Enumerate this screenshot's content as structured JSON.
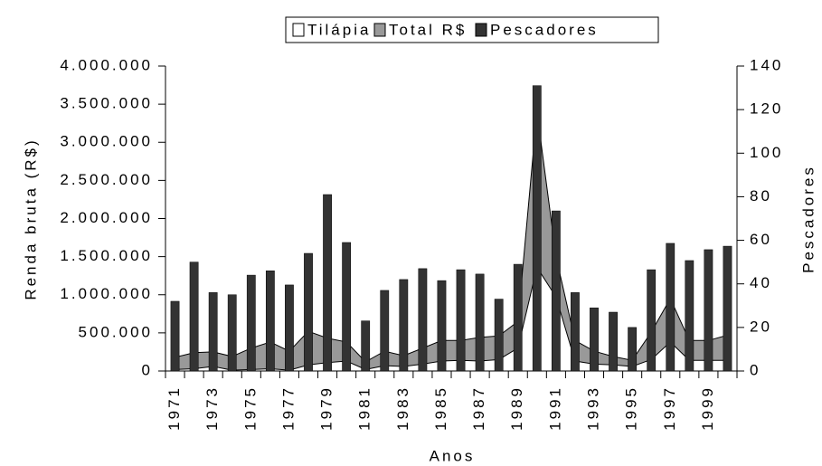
{
  "chart_data": {
    "type": "combo",
    "x_label": "Anos",
    "y_label": "Renda bruta (R$)",
    "y2_label": "Pescadores",
    "categories": [
      "1971",
      null,
      "1973",
      null,
      "1975",
      null,
      "1977",
      null,
      "1979",
      null,
      "1981",
      null,
      "1983",
      null,
      "1985",
      null,
      "1987",
      null,
      "1989",
      null,
      "1991",
      null,
      "1993",
      null,
      "1995",
      null,
      "1997",
      null,
      "1999",
      null
    ],
    "series": [
      {
        "name": "Tilápia",
        "type": "area",
        "color": "#ffffff",
        "axis": "y",
        "values": [
          20000,
          30000,
          60000,
          10000,
          20000,
          30000,
          10000,
          80000,
          110000,
          130000,
          20000,
          70000,
          60000,
          90000,
          130000,
          140000,
          130000,
          150000,
          300000,
          1360000,
          970000,
          130000,
          90000,
          80000,
          60000,
          150000,
          380000,
          140000,
          140000,
          140000
        ]
      },
      {
        "name": "Total R$",
        "type": "area",
        "color": "#999999",
        "axis": "y",
        "values": [
          180000,
          240000,
          250000,
          190000,
          300000,
          380000,
          260000,
          520000,
          430000,
          380000,
          120000,
          260000,
          200000,
          300000,
          400000,
          400000,
          440000,
          460000,
          650000,
          3400000,
          1500000,
          400000,
          260000,
          190000,
          140000,
          510000,
          950000,
          400000,
          400000,
          470000
        ]
      },
      {
        "name": "Pescadores",
        "type": "bar",
        "color": "#333333",
        "axis": "y2",
        "values": [
          32,
          50,
          36,
          35,
          44,
          46,
          39.5,
          54,
          81,
          59,
          23,
          37,
          42,
          47,
          41.5,
          46.5,
          44.5,
          33,
          49,
          131,
          73.5,
          36,
          29,
          27,
          20,
          46.5,
          58.6,
          50.7,
          55.7,
          57.3
        ]
      }
    ],
    "ylim": [
      0,
      4000000
    ],
    "yticks": [
      0,
      {
        "value": 500000,
        "label": "500.000"
      },
      {
        "value": 1000000,
        "label": "1.000.000"
      },
      {
        "value": 1500000,
        "label": "1.500.000"
      },
      {
        "value": 2000000,
        "label": "2.000.000"
      },
      {
        "value": 2500000,
        "label": "2.500.000"
      },
      {
        "value": 3000000,
        "label": "3.000.000"
      },
      {
        "value": 3500000,
        "label": "3.500.000"
      },
      {
        "value": 4000000,
        "label": "4.000.000"
      }
    ],
    "y2lim": [
      0,
      140
    ],
    "y2ticks": [
      0,
      20,
      40,
      60,
      80,
      100,
      120,
      140
    ],
    "legend": "top"
  }
}
